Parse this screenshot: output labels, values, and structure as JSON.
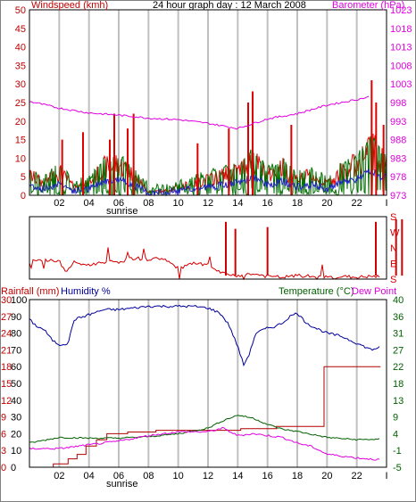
{
  "colors": {
    "wind": "#e00000",
    "gust": "#e00000",
    "windavg": "#007000",
    "windblue": "#2020c0",
    "baro": "#e000e0",
    "dir": "#d00000",
    "rain": "#b00000",
    "humidity": "#00009a",
    "temp": "#006000",
    "dew": "#e000e0",
    "grid": "#c0c0c0",
    "frame": "#000000",
    "axisRed": "#c00000",
    "axisGreen": "#006000"
  },
  "chart_data": [
    {
      "type": "line",
      "title": "24 hour graph day : 12 March 2008",
      "ylabel_left": "Windspeed (kmh)",
      "ylabel_right": "Barometer (hPa)",
      "y_left_ticks": [
        "0",
        "5",
        "10",
        "15",
        "20",
        "25",
        "30",
        "35",
        "40",
        "45",
        "50"
      ],
      "y_right_ticks": [
        "973",
        "978",
        "983",
        "988",
        "993",
        "998",
        "1003",
        "1008",
        "1013",
        "1018",
        "1023"
      ],
      "ylim_left": [
        0,
        50
      ],
      "ylim_right": [
        973,
        1023
      ],
      "x_ticks": [
        "02",
        "04",
        "06",
        "08",
        "10",
        "12",
        "14",
        "16",
        "18",
        "20",
        "22",
        "I"
      ],
      "x_annotation": "sunrise",
      "xlim_hours": [
        0,
        24
      ],
      "barometer": {
        "hours": [
          0,
          2,
          4,
          6,
          8,
          10,
          12,
          14,
          16,
          18,
          20,
          22,
          23.6
        ],
        "values": [
          998.3,
          996.5,
          995.2,
          994.6,
          993.8,
          993.4,
          992.4,
          991.0,
          993.6,
          995.0,
          997.3,
          998.8,
          1000.2
        ]
      },
      "wind_base": {
        "hours": [
          0,
          1,
          2,
          3,
          4,
          5,
          6,
          7,
          8,
          9,
          10,
          11,
          12,
          13,
          14,
          15,
          16,
          17,
          18,
          19,
          20,
          21,
          22,
          23,
          23.6
        ],
        "values": [
          5,
          3,
          6,
          2,
          3,
          7,
          8,
          5,
          1,
          1,
          2,
          3,
          4,
          5,
          6,
          9,
          5,
          7,
          4,
          5,
          3,
          6,
          8,
          12,
          9
        ]
      },
      "gusts": [
        {
          "hour": 2.2,
          "value": 15
        },
        {
          "hour": 3.6,
          "value": 17
        },
        {
          "hour": 5.4,
          "value": 15
        },
        {
          "hour": 5.7,
          "value": 22
        },
        {
          "hour": 6.6,
          "value": 18
        },
        {
          "hour": 7.0,
          "value": 22
        },
        {
          "hour": 11.3,
          "value": 14
        },
        {
          "hour": 13.4,
          "value": 18
        },
        {
          "hour": 14.7,
          "value": 25
        },
        {
          "hour": 15.0,
          "value": 28
        },
        {
          "hour": 17.6,
          "value": 19
        },
        {
          "hour": 23.0,
          "value": 31
        },
        {
          "hour": 23.3,
          "value": 25
        },
        {
          "hour": 23.8,
          "value": 19
        }
      ]
    },
    {
      "type": "line",
      "title": "",
      "y_right_ticks": [
        "S",
        "E",
        "N",
        "W",
        "S"
      ],
      "ylim": [
        0,
        360
      ],
      "direction": {
        "hours": [
          0,
          1,
          2,
          2.4,
          3,
          4,
          5,
          6,
          7,
          8,
          9,
          10,
          11,
          12,
          13,
          14,
          15,
          16,
          17,
          18,
          19,
          20,
          21,
          22,
          23,
          23.8
        ],
        "values": [
          100,
          110,
          105,
          40,
          95,
          80,
          100,
          100,
          120,
          115,
          120,
          60,
          90,
          80,
          30,
          20,
          30,
          15,
          10,
          20,
          15,
          10,
          15,
          10,
          15,
          10
        ]
      }
    },
    {
      "type": "line",
      "title": "",
      "ylabel_left_1": "Rainfall (mm)",
      "ylabel_left_2": "Humidity %",
      "ylabel_right_1": "Temperature (°C)",
      "ylabel_right_2": "Dew Point",
      "y_rain_ticks": [
        "0",
        "3",
        "6",
        "9",
        "12",
        "15",
        "18",
        "21",
        "24",
        "27",
        "30"
      ],
      "y_hum_ticks": [
        "0",
        "10",
        "20",
        "30",
        "40",
        "50",
        "60",
        "70",
        "80",
        "90",
        "100"
      ],
      "y_temp_ticks": [
        "-5",
        "-1",
        "4",
        "9",
        "13",
        "18",
        "22",
        "27",
        "31",
        "36",
        "40"
      ],
      "ylim_hum": [
        0,
        100
      ],
      "ylim_temp": [
        -5,
        40
      ],
      "humidity": {
        "hours": [
          0,
          0.5,
          1,
          1.5,
          2,
          2.6,
          3,
          4,
          5,
          6,
          7,
          8,
          9,
          10,
          11,
          12,
          12.8,
          13.4,
          14,
          14.4,
          14.8,
          15.2,
          16,
          16.5,
          17,
          17.5,
          18,
          18.5,
          19,
          20,
          21,
          22,
          22.5,
          23,
          23.6
        ],
        "values": [
          88,
          84,
          82,
          76,
          73,
          74,
          88,
          91,
          94,
          94,
          95,
          96,
          96,
          96,
          96,
          95,
          92,
          85,
          72,
          61,
          68,
          80,
          83,
          84,
          86,
          90,
          92,
          87,
          84,
          80,
          78,
          74,
          72,
          70,
          72
        ]
      },
      "temperature": {
        "hours": [
          0,
          2,
          4,
          6,
          8,
          10,
          12,
          13,
          14,
          15,
          16,
          17,
          18,
          20,
          22,
          23.6
        ],
        "values": [
          1.5,
          3.0,
          2.8,
          2.8,
          3.2,
          4.0,
          5.5,
          7.5,
          9.0,
          8.2,
          6.5,
          5.2,
          4.6,
          3.0,
          2.4,
          2.5
        ]
      },
      "dewpoint": {
        "hours": [
          0,
          2,
          4,
          6,
          8,
          10,
          12,
          13,
          14,
          15,
          16,
          17,
          18,
          19,
          20,
          21,
          22,
          23.6
        ],
        "values": [
          0.0,
          0.0,
          1.0,
          2.0,
          3.5,
          4.5,
          4.5,
          5.5,
          3.5,
          4.0,
          3.5,
          3.0,
          1.5,
          0.5,
          -1.5,
          -2.0,
          -2.5,
          -3.0
        ]
      },
      "rain": {
        "hours": [
          0,
          1.2,
          1.6,
          2.6,
          3.2,
          3.8,
          4.5,
          5.2,
          6.6,
          8.5,
          14.2,
          16.6,
          19.8,
          23.6
        ],
        "values": [
          0,
          0,
          0.6,
          1.5,
          2.3,
          3.8,
          4.9,
          6.0,
          6.3,
          6.6,
          6.9,
          7.3,
          18.0,
          18.0
        ]
      }
    }
  ]
}
